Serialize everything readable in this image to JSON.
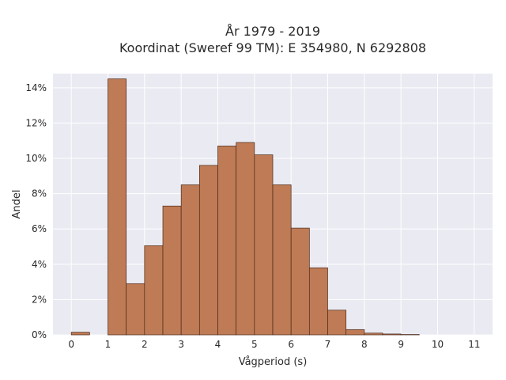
{
  "chart_data": {
    "type": "bar",
    "title_lines": [
      "År 1979 - 2019",
      "Koordinat (Sweref 99 TM): E 354980, N 6292808"
    ],
    "xlabel": "Vågperiod (s)",
    "ylabel": "Andel",
    "x_ticks": [
      "0",
      "1",
      "2",
      "3",
      "4",
      "5",
      "6",
      "7",
      "8",
      "9",
      "10",
      "11"
    ],
    "y_ticks": [
      "0%",
      "2%",
      "4%",
      "6%",
      "8%",
      "10%",
      "12%",
      "14%"
    ],
    "xlim": [
      -0.5,
      11.5
    ],
    "ylim": [
      0,
      14.8
    ],
    "grid": true,
    "bin_width": 0.5,
    "bins": [
      {
        "start": 0.0,
        "value": 0.15
      },
      {
        "start": 1.0,
        "value": 14.5
      },
      {
        "start": 1.5,
        "value": 2.9
      },
      {
        "start": 2.0,
        "value": 5.05
      },
      {
        "start": 2.5,
        "value": 7.3
      },
      {
        "start": 3.0,
        "value": 8.5
      },
      {
        "start": 3.5,
        "value": 9.6
      },
      {
        "start": 4.0,
        "value": 10.7
      },
      {
        "start": 4.5,
        "value": 10.9
      },
      {
        "start": 5.0,
        "value": 10.2
      },
      {
        "start": 5.5,
        "value": 8.5
      },
      {
        "start": 6.0,
        "value": 6.05
      },
      {
        "start": 6.5,
        "value": 3.8
      },
      {
        "start": 7.0,
        "value": 1.4
      },
      {
        "start": 7.5,
        "value": 0.3
      },
      {
        "start": 8.0,
        "value": 0.1
      },
      {
        "start": 8.5,
        "value": 0.05
      },
      {
        "start": 9.0,
        "value": 0.02
      }
    ],
    "colors": {
      "bar": "#bf7b55",
      "edge": "#4a2a1a",
      "plot_bg": "#eaeaf2"
    }
  }
}
